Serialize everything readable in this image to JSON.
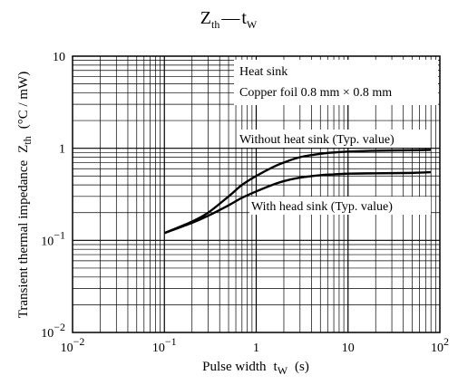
{
  "chart_data": {
    "type": "line",
    "title": {
      "main": "Z",
      "main_sub": "th",
      "dash": "—",
      "var": "t",
      "var_sub": "W"
    },
    "xlabel": {
      "text": "Pulse width",
      "var": "t",
      "var_sub": "W",
      "unit": "(s)"
    },
    "ylabel": {
      "text": "Transient thermal impedance",
      "var": "Z",
      "var_sub": "th",
      "unit": "(°C / mW)"
    },
    "x_scale": "log",
    "y_scale": "log",
    "xlim": [
      0.01,
      100
    ],
    "ylim": [
      0.01,
      10
    ],
    "grid": true,
    "x_ticks": [
      {
        "value": 0.01,
        "base": "10",
        "exp": "−2"
      },
      {
        "value": 0.1,
        "base": "10",
        "exp": "−1"
      },
      {
        "value": 1,
        "base": "1",
        "exp": ""
      },
      {
        "value": 10,
        "base": "10",
        "exp": ""
      },
      {
        "value": 100,
        "base": "10",
        "exp": "2"
      }
    ],
    "y_ticks": [
      {
        "value": 0.01,
        "base": "10",
        "exp": "−2"
      },
      {
        "value": 0.1,
        "base": "10",
        "exp": "−1"
      },
      {
        "value": 1,
        "base": "1",
        "exp": ""
      },
      {
        "value": 10,
        "base": "10",
        "exp": ""
      }
    ],
    "annotations": {
      "heat_sink_title": "Heat sink",
      "heat_sink_detail": "Copper foil 0.8 mm × 0.8 mm"
    },
    "series": [
      {
        "name": "Without heat sink (Typ. value)",
        "x": [
          0.1,
          0.2,
          0.3,
          0.5,
          0.7,
          1,
          1.5,
          2,
          3,
          5,
          7,
          10,
          20,
          50,
          80
        ],
        "y": [
          0.12,
          0.16,
          0.2,
          0.3,
          0.4,
          0.5,
          0.62,
          0.7,
          0.8,
          0.87,
          0.9,
          0.92,
          0.94,
          0.95,
          0.96
        ]
      },
      {
        "name": "With head sink (Typ. value)",
        "x": [
          0.1,
          0.2,
          0.3,
          0.5,
          0.7,
          1,
          1.5,
          2,
          3,
          5,
          7,
          10,
          20,
          50,
          80
        ],
        "y": [
          0.12,
          0.155,
          0.185,
          0.24,
          0.29,
          0.34,
          0.4,
          0.44,
          0.48,
          0.51,
          0.52,
          0.53,
          0.535,
          0.54,
          0.55
        ]
      }
    ]
  }
}
